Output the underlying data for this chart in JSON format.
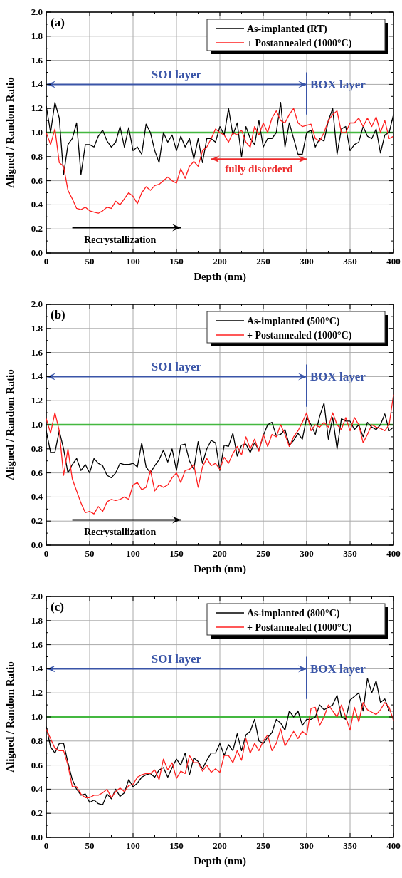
{
  "chart_data": [
    {
      "type": "line",
      "title": "(a)",
      "xlabel": "Depth (nm)",
      "ylabel": "Aligned / Random Ratio",
      "xlim": [
        0,
        400
      ],
      "ylim": [
        0,
        2
      ],
      "xticks": [
        0,
        {
          "value": 25,
          "label": null
        },
        50,
        {
          "value": 75,
          "label": null
        },
        100,
        {
          "value": 125,
          "label": null
        },
        150,
        {
          "value": 175,
          "label": null
        },
        200,
        {
          "value": 225,
          "label": null
        },
        250,
        {
          "value": 275,
          "label": null
        },
        300,
        {
          "value": 325,
          "label": null
        },
        350,
        {
          "value": 375,
          "label": null
        },
        400
      ],
      "yticks": [
        {
          "value": 0,
          "label": "0.0"
        },
        {
          "value": 0.1,
          "label": null
        },
        {
          "value": 0.2,
          "label": "0.2"
        },
        {
          "value": 0.3,
          "label": null
        },
        {
          "value": 0.4,
          "label": "0.4"
        },
        {
          "value": 0.5,
          "label": null
        },
        {
          "value": 0.6,
          "label": "0.6"
        },
        {
          "value": 0.7,
          "label": null
        },
        {
          "value": 0.8,
          "label": "0.8"
        },
        {
          "value": 0.9,
          "label": null
        },
        {
          "value": 1,
          "label": "1.0"
        },
        {
          "value": 1.1,
          "label": null
        },
        {
          "value": 1.2,
          "label": "1.2"
        },
        {
          "value": 1.3,
          "label": null
        },
        {
          "value": 1.4,
          "label": "1.4"
        },
        {
          "value": 1.5,
          "label": null
        },
        {
          "value": 1.6,
          "label": "1.6"
        },
        {
          "value": 1.7,
          "label": null
        },
        {
          "value": 1.8,
          "label": "1.8"
        },
        {
          "value": 1.9,
          "label": null
        },
        {
          "value": 2,
          "label": "2.0"
        }
      ],
      "grid": true,
      "legend": "top right",
      "x": [
        0,
        5,
        10,
        15,
        20,
        25,
        30,
        35,
        40,
        45,
        50,
        55,
        60,
        65,
        70,
        75,
        80,
        85,
        90,
        95,
        100,
        105,
        110,
        115,
        120,
        125,
        130,
        135,
        140,
        145,
        150,
        155,
        160,
        165,
        170,
        175,
        180,
        185,
        190,
        195,
        200,
        205,
        210,
        215,
        220,
        225,
        230,
        235,
        240,
        245,
        250,
        255,
        260,
        265,
        270,
        275,
        280,
        285,
        290,
        295,
        300,
        305,
        310,
        315,
        320,
        325,
        330,
        335,
        340,
        345,
        350,
        355,
        360,
        365,
        370,
        375,
        380,
        385,
        390,
        395,
        400
      ],
      "series": [
        {
          "name": "As-implanted (RT)",
          "color": "#000000",
          "values": [
            1.22,
            1.0,
            1.25,
            1.12,
            0.65,
            0.9,
            0.95,
            1.08,
            0.65,
            0.9,
            0.9,
            0.88,
            0.97,
            1.02,
            0.93,
            0.88,
            0.92,
            1.05,
            0.88,
            1.04,
            0.85,
            0.88,
            0.82,
            1.07,
            1.0,
            0.85,
            0.75,
            1.0,
            0.92,
            0.98,
            0.85,
            0.97,
            0.88,
            0.95,
            0.78,
            0.95,
            0.75,
            0.95,
            0.95,
            0.92,
            1.05,
            0.98,
            1.2,
            0.98,
            1.08,
            0.8,
            1.05,
            0.95,
            0.9,
            1.1,
            0.88,
            0.95,
            0.95,
            1.0,
            1.25,
            0.88,
            1.08,
            0.95,
            0.82,
            0.82,
            1.0,
            1.02,
            0.88,
            0.95,
            0.93,
            1.1,
            1.2,
            0.82,
            1.03,
            1.05,
            0.85,
            0.9,
            0.92,
            1.05,
            0.97,
            0.95,
            1.03,
            0.83,
            0.98,
            1.0,
            1.15
          ]
        },
        {
          "name": "+ Postannealed (1000°C)",
          "color": "#ff2020",
          "values": [
            1.0,
            0.9,
            1.03,
            0.75,
            0.72,
            0.52,
            0.45,
            0.37,
            0.36,
            0.38,
            0.35,
            0.34,
            0.33,
            0.35,
            0.38,
            0.37,
            0.43,
            0.4,
            0.45,
            0.5,
            0.47,
            0.41,
            0.5,
            0.55,
            0.52,
            0.56,
            0.57,
            0.6,
            0.63,
            0.6,
            0.58,
            0.7,
            0.62,
            0.72,
            0.76,
            0.72,
            0.85,
            0.88,
            0.95,
            1.03,
            1.0,
            0.98,
            0.92,
            1.0,
            0.98,
            1.02,
            0.92,
            0.88,
            1.05,
            0.98,
            1.08,
            1.0,
            1.12,
            1.18,
            1.1,
            1.08,
            1.15,
            1.2,
            1.08,
            1.05,
            1.06,
            1.07,
            0.95,
            0.93,
            1.0,
            1.1,
            1.15,
            1.18,
            1.0,
            1.0,
            1.08,
            1.08,
            1.12,
            1.05,
            1.12,
            1.05,
            1.13,
            1.0,
            1.1,
            0.95,
            0.97
          ]
        }
      ],
      "ref_lines": [
        {
          "axis": "y",
          "value": 1,
          "color": "#44b840"
        }
      ],
      "annotations": [
        "SOI layer",
        "BOX layer",
        "Recrystallization",
        "fully disorderd"
      ]
    },
    {
      "type": "line",
      "title": "(b)",
      "xlabel": "Depth (nm)",
      "ylabel": "Aligned / Random Ratio",
      "xlim": [
        0,
        400
      ],
      "ylim": [
        0,
        2
      ],
      "xticks": [
        0,
        {
          "value": 25,
          "label": null
        },
        50,
        {
          "value": 75,
          "label": null
        },
        100,
        {
          "value": 125,
          "label": null
        },
        150,
        {
          "value": 175,
          "label": null
        },
        200,
        {
          "value": 225,
          "label": null
        },
        250,
        {
          "value": 275,
          "label": null
        },
        300,
        {
          "value": 325,
          "label": null
        },
        350,
        {
          "value": 375,
          "label": null
        },
        400
      ],
      "yticks": [
        {
          "value": 0,
          "label": "0.0"
        },
        {
          "value": 0.1,
          "label": null
        },
        {
          "value": 0.2,
          "label": "0.2"
        },
        {
          "value": 0.3,
          "label": null
        },
        {
          "value": 0.4,
          "label": "0.4"
        },
        {
          "value": 0.5,
          "label": null
        },
        {
          "value": 0.6,
          "label": "0.6"
        },
        {
          "value": 0.7,
          "label": null
        },
        {
          "value": 0.8,
          "label": "0.8"
        },
        {
          "value": 0.9,
          "label": null
        },
        {
          "value": 1,
          "label": "1.0"
        },
        {
          "value": 1.1,
          "label": null
        },
        {
          "value": 1.2,
          "label": "1.2"
        },
        {
          "value": 1.3,
          "label": null
        },
        {
          "value": 1.4,
          "label": "1.4"
        },
        {
          "value": 1.5,
          "label": null
        },
        {
          "value": 1.6,
          "label": "1.6"
        },
        {
          "value": 1.7,
          "label": null
        },
        {
          "value": 1.8,
          "label": "1.8"
        },
        {
          "value": 1.9,
          "label": null
        },
        {
          "value": 2,
          "label": "2.0"
        }
      ],
      "grid": true,
      "legend": "top right",
      "x": [
        0,
        5,
        10,
        15,
        20,
        25,
        30,
        35,
        40,
        45,
        50,
        55,
        60,
        65,
        70,
        75,
        80,
        85,
        90,
        95,
        100,
        105,
        110,
        115,
        120,
        125,
        130,
        135,
        140,
        145,
        150,
        155,
        160,
        165,
        170,
        175,
        180,
        185,
        190,
        195,
        200,
        205,
        210,
        215,
        220,
        225,
        230,
        235,
        240,
        245,
        250,
        255,
        260,
        265,
        270,
        275,
        280,
        285,
        290,
        295,
        300,
        305,
        310,
        315,
        320,
        325,
        330,
        335,
        340,
        345,
        350,
        355,
        360,
        365,
        370,
        375,
        380,
        385,
        390,
        395,
        400
      ],
      "series": [
        {
          "name": "As-implanted  (500°C)",
          "color": "#000000",
          "values": [
            0.95,
            0.77,
            0.77,
            0.95,
            0.8,
            0.6,
            0.67,
            0.72,
            0.62,
            0.67,
            0.6,
            0.72,
            0.68,
            0.66,
            0.58,
            0.56,
            0.6,
            0.68,
            0.67,
            0.67,
            0.68,
            0.65,
            0.85,
            0.65,
            0.6,
            0.66,
            0.71,
            0.79,
            0.69,
            0.8,
            0.62,
            0.83,
            0.84,
            0.7,
            0.63,
            0.86,
            0.68,
            0.8,
            0.87,
            0.85,
            0.62,
            0.83,
            0.82,
            0.93,
            0.74,
            0.83,
            0.84,
            0.77,
            0.85,
            0.79,
            0.91,
            1.0,
            1.02,
            0.91,
            0.92,
            0.96,
            0.83,
            0.87,
            0.93,
            0.88,
            1.06,
            1.0,
            0.92,
            1.07,
            1.18,
            0.88,
            1.06,
            0.8,
            1.05,
            1.03,
            1.03,
            0.96,
            1.0,
            0.9,
            1.02,
            0.98,
            0.96,
            1.0,
            1.09,
            0.95,
            0.98
          ]
        },
        {
          "name": "+ Postannealed (1000°C)",
          "color": "#ff2020",
          "values": [
            1.05,
            0.93,
            1.1,
            0.95,
            0.58,
            0.8,
            0.55,
            0.45,
            0.35,
            0.27,
            0.28,
            0.26,
            0.32,
            0.28,
            0.36,
            0.38,
            0.37,
            0.38,
            0.4,
            0.38,
            0.5,
            0.52,
            0.46,
            0.48,
            0.62,
            0.45,
            0.5,
            0.48,
            0.5,
            0.56,
            0.6,
            0.52,
            0.62,
            0.63,
            0.67,
            0.48,
            0.65,
            0.72,
            0.66,
            0.68,
            0.63,
            0.73,
            0.68,
            0.76,
            0.82,
            0.75,
            0.9,
            0.8,
            0.88,
            0.78,
            0.92,
            0.82,
            0.92,
            0.9,
            1.0,
            0.92,
            0.82,
            0.9,
            0.95,
            1.02,
            1.1,
            0.95,
            1.0,
            0.98,
            1.02,
            0.98,
            1.1,
            1.0,
            0.96,
            1.06,
            0.95,
            1.06,
            1.0,
            0.85,
            0.92,
            1.0,
            0.98,
            0.97,
            0.95,
            1.0,
            1.25
          ]
        }
      ],
      "ref_lines": [
        {
          "axis": "y",
          "value": 1,
          "color": "#44b840"
        }
      ],
      "annotations": [
        "SOI layer",
        "BOX layer",
        "Recrystallization"
      ]
    },
    {
      "type": "line",
      "title": "(c)",
      "xlabel": "Depth (nm)",
      "ylabel": "Aligned / Random Ratio",
      "xlim": [
        0,
        400
      ],
      "ylim": [
        0,
        2
      ],
      "xticks": [
        0,
        {
          "value": 25,
          "label": null
        },
        50,
        {
          "value": 75,
          "label": null
        },
        100,
        {
          "value": 125,
          "label": null
        },
        150,
        {
          "value": 175,
          "label": null
        },
        200,
        {
          "value": 225,
          "label": null
        },
        250,
        {
          "value": 275,
          "label": null
        },
        300,
        {
          "value": 325,
          "label": null
        },
        350,
        {
          "value": 375,
          "label": null
        },
        400
      ],
      "yticks": [
        {
          "value": 0,
          "label": "0.0"
        },
        {
          "value": 0.1,
          "label": null
        },
        {
          "value": 0.2,
          "label": "0.2"
        },
        {
          "value": 0.3,
          "label": null
        },
        {
          "value": 0.4,
          "label": "0.4"
        },
        {
          "value": 0.5,
          "label": null
        },
        {
          "value": 0.6,
          "label": "0.6"
        },
        {
          "value": 0.7,
          "label": null
        },
        {
          "value": 0.8,
          "label": "0.8"
        },
        {
          "value": 0.9,
          "label": null
        },
        {
          "value": 1,
          "label": "1.0"
        },
        {
          "value": 1.1,
          "label": null
        },
        {
          "value": 1.2,
          "label": "1.2"
        },
        {
          "value": 1.3,
          "label": null
        },
        {
          "value": 1.4,
          "label": "1.4"
        },
        {
          "value": 1.5,
          "label": null
        },
        {
          "value": 1.6,
          "label": "1.6"
        },
        {
          "value": 1.7,
          "label": null
        },
        {
          "value": 1.8,
          "label": "1.8"
        },
        {
          "value": 1.9,
          "label": null
        },
        {
          "value": 2,
          "label": "2.0"
        }
      ],
      "grid": true,
      "legend": "top right",
      "x": [
        0,
        5,
        10,
        15,
        20,
        25,
        30,
        35,
        40,
        45,
        50,
        55,
        60,
        65,
        70,
        75,
        80,
        85,
        90,
        95,
        100,
        105,
        110,
        115,
        120,
        125,
        130,
        135,
        140,
        145,
        150,
        155,
        160,
        165,
        170,
        175,
        180,
        185,
        190,
        195,
        200,
        205,
        210,
        215,
        220,
        225,
        230,
        235,
        240,
        245,
        250,
        255,
        260,
        265,
        270,
        275,
        280,
        285,
        290,
        295,
        300,
        305,
        310,
        315,
        320,
        325,
        330,
        335,
        340,
        345,
        350,
        355,
        360,
        365,
        370,
        375,
        380,
        385,
        390,
        395,
        400
      ],
      "series": [
        {
          "name": "As-implanted (800°C)",
          "color": "#000000",
          "values": [
            0.92,
            0.75,
            0.7,
            0.78,
            0.78,
            0.62,
            0.48,
            0.4,
            0.35,
            0.36,
            0.29,
            0.31,
            0.28,
            0.27,
            0.36,
            0.32,
            0.4,
            0.34,
            0.37,
            0.48,
            0.42,
            0.45,
            0.5,
            0.52,
            0.53,
            0.5,
            0.56,
            0.58,
            0.5,
            0.58,
            0.65,
            0.6,
            0.7,
            0.52,
            0.66,
            0.63,
            0.57,
            0.64,
            0.7,
            0.7,
            0.78,
            0.68,
            0.77,
            0.72,
            0.86,
            0.72,
            0.85,
            0.88,
            0.98,
            0.8,
            0.78,
            0.83,
            0.87,
            0.98,
            0.95,
            0.89,
            1.05,
            1.0,
            1.05,
            0.93,
            0.98,
            0.98,
            1.0,
            1.1,
            1.06,
            1.08,
            1.1,
            1.18,
            1.0,
            0.98,
            1.14,
            1.17,
            1.2,
            1.05,
            1.32,
            1.2,
            1.3,
            1.12,
            1.15,
            1.05,
            1.05
          ]
        },
        {
          "name": "+ Postannealed (1000°C)",
          "color": "#ff2020",
          "values": [
            0.9,
            0.82,
            0.74,
            0.72,
            0.72,
            0.6,
            0.42,
            0.42,
            0.36,
            0.33,
            0.33,
            0.35,
            0.35,
            0.37,
            0.4,
            0.33,
            0.38,
            0.41,
            0.38,
            0.43,
            0.44,
            0.5,
            0.52,
            0.53,
            0.53,
            0.56,
            0.48,
            0.65,
            0.56,
            0.62,
            0.49,
            0.55,
            0.53,
            0.68,
            0.62,
            0.62,
            0.55,
            0.6,
            0.54,
            0.57,
            0.54,
            0.68,
            0.68,
            0.62,
            0.72,
            0.64,
            0.82,
            0.7,
            0.78,
            0.72,
            0.8,
            0.85,
            0.72,
            0.78,
            0.9,
            0.76,
            0.82,
            0.88,
            0.82,
            0.88,
            0.85,
            1.07,
            1.08,
            0.93,
            1.0,
            1.1,
            1.05,
            1.0,
            1.1,
            1.0,
            0.89,
            1.08,
            0.96,
            1.12,
            1.06,
            1.04,
            1.02,
            1.06,
            1.12,
            1.08,
            0.97
          ]
        }
      ],
      "ref_lines": [
        {
          "axis": "y",
          "value": 1,
          "color": "#44b840"
        }
      ],
      "annotations": [
        "SOI layer",
        "BOX layer"
      ]
    }
  ]
}
